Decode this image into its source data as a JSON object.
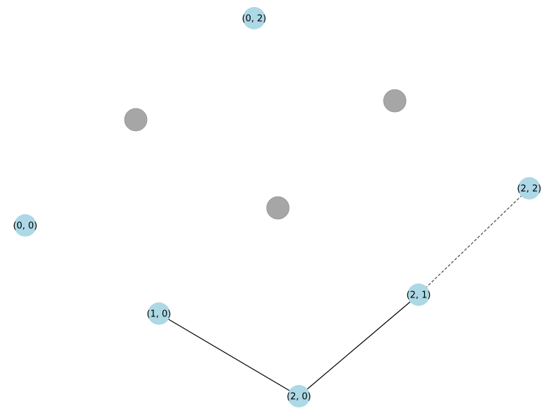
{
  "colors": {
    "labeled_node": "#add8e6",
    "unlabeled_node": "#a6a6a6",
    "solid_edge": "#000000",
    "dashed_edge": "#444444"
  },
  "nodes": [
    {
      "id": "n-0-2",
      "label": "(0, 2)",
      "kind": "labeled"
    },
    {
      "id": "n-0-0",
      "label": "(0, 0)",
      "kind": "labeled"
    },
    {
      "id": "n-1-0",
      "label": "(1, 0)",
      "kind": "labeled"
    },
    {
      "id": "n-2-0",
      "label": "(2, 0)",
      "kind": "labeled"
    },
    {
      "id": "n-2-1",
      "label": "(2, 1)",
      "kind": "labeled"
    },
    {
      "id": "n-2-2",
      "label": "(2, 2)",
      "kind": "labeled"
    },
    {
      "id": "g-a",
      "label": "",
      "kind": "unlabeled"
    },
    {
      "id": "g-b",
      "label": "",
      "kind": "unlabeled"
    },
    {
      "id": "g-c",
      "label": "",
      "kind": "unlabeled"
    }
  ],
  "edges": [
    {
      "source": "n-1-0",
      "target": "n-2-0",
      "style": "solid"
    },
    {
      "source": "n-2-0",
      "target": "n-2-1",
      "style": "solid"
    },
    {
      "source": "n-2-1",
      "target": "n-2-2",
      "style": "dashed"
    }
  ]
}
